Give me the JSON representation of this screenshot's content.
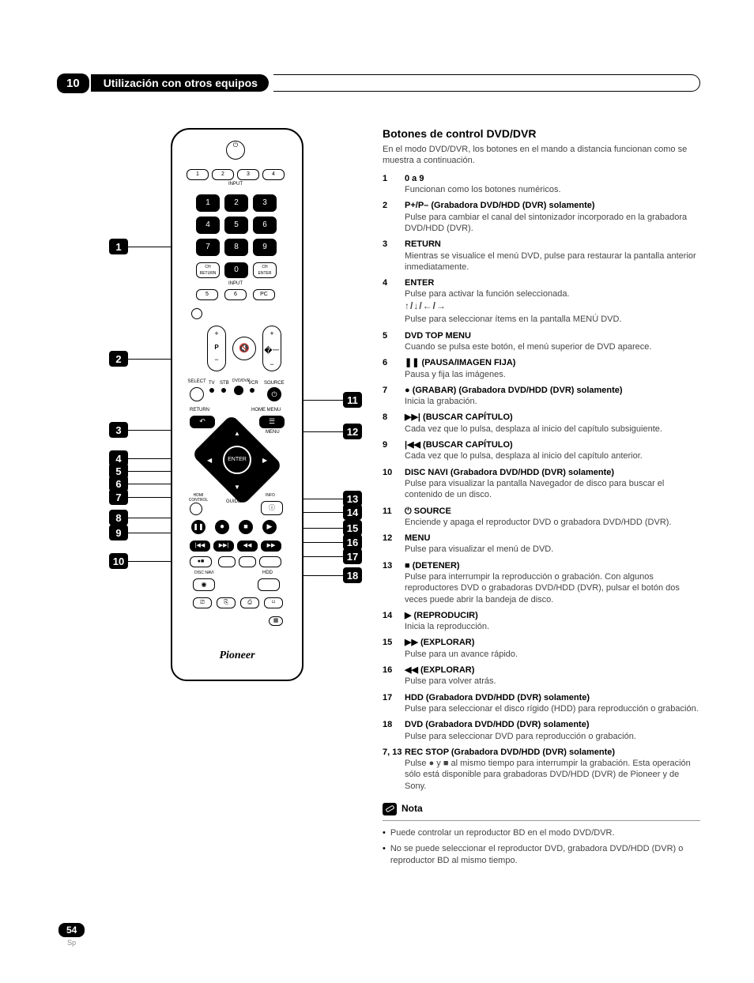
{
  "chapter": "10",
  "section_title": "Utilización con otros equipos",
  "page_number": "54",
  "page_lang": "Sp",
  "heading": "Botones de control DVD/DVR",
  "intro": "En el modo DVD/DVR, los botones en el mando a distancia funcionan como se muestra a continuación.",
  "items": [
    {
      "num": "1",
      "title": "0 a 9",
      "desc": "Funcionan como los botones numéricos."
    },
    {
      "num": "2",
      "title": "P+/P– (Grabadora DVD/HDD (DVR) solamente)",
      "desc": "Pulse para cambiar el canal del sintonizador incorporado en la grabadora DVD/HDD (DVR)."
    },
    {
      "num": "3",
      "title": "RETURN",
      "desc": "Mientras se visualice el menú DVD, pulse para restaurar la pantalla anterior inmediatamente."
    },
    {
      "num": "4",
      "title": "ENTER",
      "desc": "Pulse para activar la función seleccionada.",
      "arrows": true,
      "desc2": "Pulse para seleccionar ítems en la pantalla MENÚ DVD."
    },
    {
      "num": "5",
      "title": "DVD TOP MENU",
      "desc": "Cuando se pulsa este botón, el menú superior de DVD aparece."
    },
    {
      "num": "6",
      "icon": "pause",
      "title": "(PAUSA/IMAGEN FIJA)",
      "desc": "Pausa y fija las imágenes."
    },
    {
      "num": "7",
      "icon": "record",
      "title": "(GRABAR) (Grabadora DVD/HDD (DVR) solamente)",
      "desc": "Inicia la grabación."
    },
    {
      "num": "8",
      "icon": "next",
      "title": "(BUSCAR CAPÍTULO)",
      "desc": "Cada vez que lo pulsa, desplaza al inicio del capítulo subsiguiente."
    },
    {
      "num": "9",
      "icon": "prev",
      "title": "(BUSCAR CAPÍTULO)",
      "desc": "Cada vez que lo pulsa, desplaza al inicio del capítulo anterior."
    },
    {
      "num": "10",
      "title": "DISC NAVI (Grabadora DVD/HDD (DVR) solamente)",
      "desc": "Pulse para visualizar la pantalla Navegador de disco para buscar el contenido de un disco."
    },
    {
      "num": "11",
      "icon": "power",
      "title": "SOURCE ",
      "desc": "Enciende y apaga el reproductor DVD o grabadora DVD/HDD (DVR)."
    },
    {
      "num": "12",
      "title": "MENU",
      "desc": "Pulse para visualizar el menú de DVD."
    },
    {
      "num": "13",
      "icon": "stop",
      "title": "(DETENER)",
      "desc": "Pulse para interrumpir la reproducción o grabación. Con algunos reproductores DVD o grabadoras DVD/HDD (DVR), pulsar el botón dos veces puede abrir la bandeja de disco."
    },
    {
      "num": "14",
      "icon": "play",
      "title": "(REPRODUCIR)",
      "desc": "Inicia la reproducción."
    },
    {
      "num": "15",
      "icon": "ffwd",
      "title": "(EXPLORAR)",
      "desc": "Pulse para un avance rápido."
    },
    {
      "num": "16",
      "icon": "rew",
      "title": "(EXPLORAR)",
      "desc": "Pulse para volver atrás."
    },
    {
      "num": "17",
      "title": "HDD (Grabadora DVD/HDD (DVR) solamente)",
      "desc": "Pulse para seleccionar el disco rígido (HDD) para reproducción o grabación."
    },
    {
      "num": "18",
      "title": "DVD (Grabadora DVD/HDD (DVR) solamente)",
      "desc": "Pulse para seleccionar DVD para reproducción o grabación."
    },
    {
      "num": "7, 13",
      "title": "REC STOP (Grabadora DVD/HDD (DVR) solamente)",
      "desc": "Pulse ● y ■ al mismo tiempo para interrumpir la grabación. Esta operación sólo está disponible para grabadoras DVD/HDD (DVR) de Pioneer y de Sony."
    }
  ],
  "nota_label": "Nota",
  "notes": [
    "Puede controlar un reproductor BD en el modo DVD/DVR.",
    "No se puede seleccionar el reproductor DVD, grabadora DVD/HDD (DVR) o reproductor BD al mismo tiempo."
  ],
  "remote": {
    "brand": "Pioneer",
    "input_label": "INPUT",
    "return_label": "RETURN",
    "menu_label": "MENU",
    "enter_label": "ENTER",
    "source_label": "SOURCE",
    "home_menu_label": "HOME MENU",
    "hdd_label": "HDD",
    "disc_navi_label": "DISC NAVI",
    "ch_return": "CH RETURN",
    "ch_enter": "CH ENTER",
    "select_label": "SELECT",
    "tv": "TV",
    "stb": "STB",
    "dvr": "DVD/DVR",
    "vcr": "VCR",
    "hdmi_label": "HDMI CONTROL",
    "info_label": "INFO",
    "guide_label": "GUIDE",
    "p_label": "P"
  },
  "callouts_left": {
    "1": 140,
    "2": 282,
    "3": 372,
    "4": 408,
    "5": 424,
    "6": 440,
    "7": 457,
    "8": 483,
    "9": 502,
    "10": 538
  },
  "callouts_right": {
    "11": 334,
    "12": 374,
    "13": 459,
    "14": 476,
    "15": 496,
    "16": 514,
    "17": 532,
    "18": 556
  },
  "icons": {
    "pause": "❚❚",
    "record": "●",
    "stop": "■",
    "play": "▶",
    "ffwd": "▶▶",
    "rew": "◀◀",
    "next": "▶▶|",
    "prev": "|◀◀",
    "power": "⏻",
    "arrows": "↑/↓/←/→"
  },
  "colors": {
    "text_primary": "#000000",
    "text_secondary": "#444444",
    "background": "#ffffff"
  }
}
